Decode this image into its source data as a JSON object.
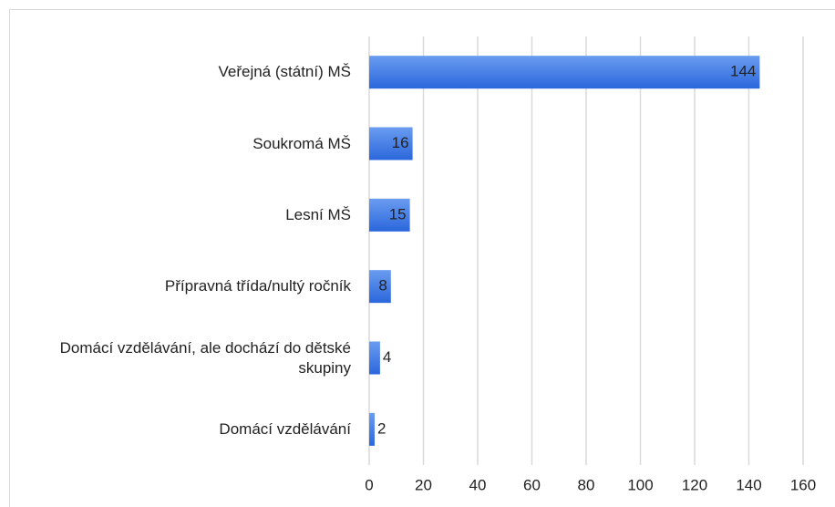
{
  "chart_data": {
    "type": "bar",
    "orientation": "horizontal",
    "categories": [
      "Veřejná (státní) MŠ",
      "Soukromá MŠ",
      "Lesní MŠ",
      "Přípravná třída/nultý ročník",
      "Domácí vzdělávání, ale dochází do dětské skupiny",
      "Domácí vzdělávání"
    ],
    "values": [
      144,
      16,
      15,
      8,
      4,
      2
    ],
    "color": "#3a78e6",
    "xlim": [
      0,
      160
    ],
    "xticks": [
      0,
      20,
      40,
      60,
      80,
      100,
      120,
      140,
      160
    ],
    "grid": true
  }
}
